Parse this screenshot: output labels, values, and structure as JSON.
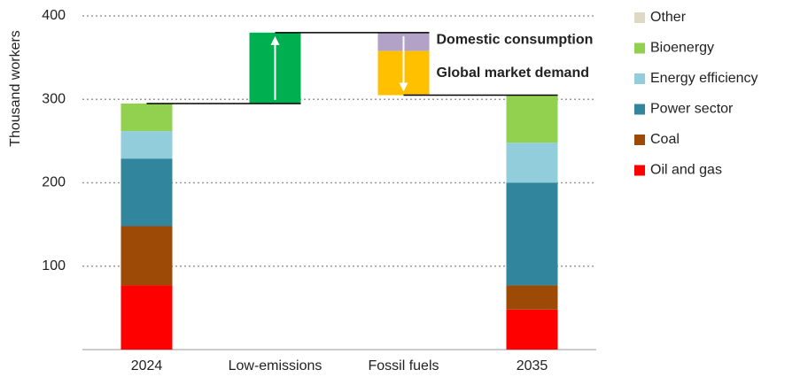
{
  "chart_data": {
    "type": "waterfall",
    "y_label": "Thousand workers",
    "categories": [
      "2024",
      "Low-emissions",
      "Fossil fuels",
      "2035"
    ],
    "series": [
      {
        "name": "Oil and gas",
        "color": "#ff0000",
        "values": [
          77,
          null,
          null,
          48
        ]
      },
      {
        "name": "Coal",
        "color": "#9c4a06",
        "values": [
          71,
          null,
          null,
          29
        ]
      },
      {
        "name": "Power sector",
        "color": "#31859c",
        "values": [
          81,
          null,
          null,
          123
        ]
      },
      {
        "name": "Energy efficiency",
        "color": "#92cddc",
        "values": [
          33,
          null,
          null,
          48
        ]
      },
      {
        "name": "Bioenergy",
        "color": "#92d050",
        "values": [
          33,
          null,
          null,
          57
        ]
      },
      {
        "name": "Other",
        "color": "#ddd9c3",
        "values": [
          null,
          null,
          null,
          null
        ]
      }
    ],
    "increase": {
      "color": "#00b050",
      "values": [
        null,
        85,
        null,
        null
      ]
    },
    "decreases": [
      {
        "name": "Domestic consumption",
        "color": "#b3a2c7",
        "values": [
          null,
          null,
          -22,
          null
        ]
      },
      {
        "name": "Global market demand",
        "color": "#ffc000",
        "values": [
          null,
          null,
          -53,
          null
        ]
      }
    ],
    "ylim": [
      0,
      400
    ],
    "yticks": [
      100,
      200,
      300,
      400
    ],
    "grid": true
  }
}
